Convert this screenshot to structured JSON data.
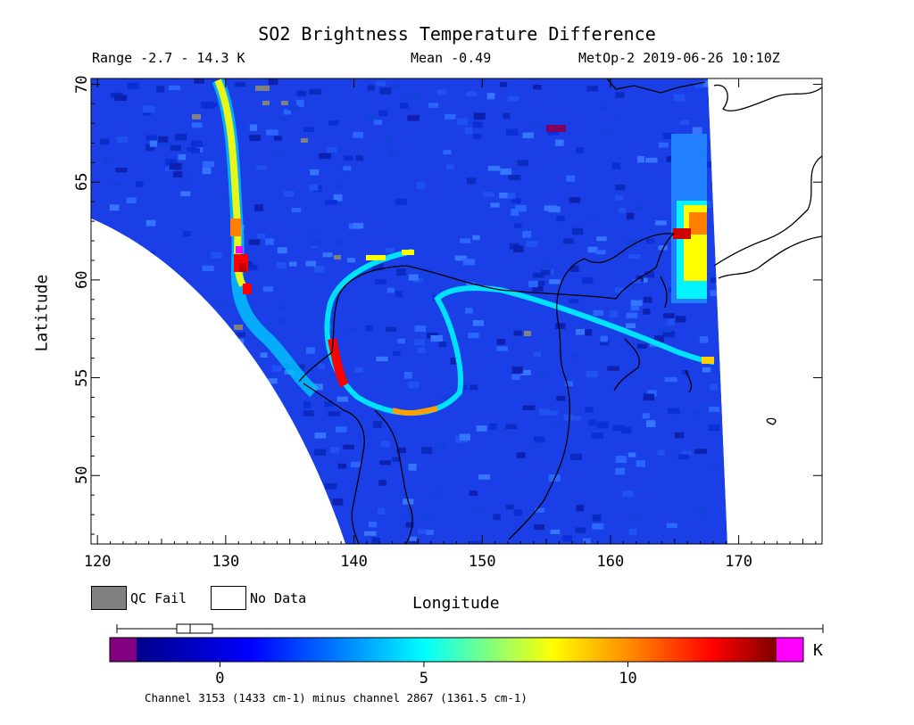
{
  "header": {
    "title": "SO2 Brightness Temperature Difference",
    "range": "Range -2.7 - 14.3 K",
    "mean": "Mean -0.49",
    "satellite_time": "MetOp-2 2019-06-26 10:10Z"
  },
  "map": {
    "x_axis_label": "Longitude",
    "y_axis_label": "Latitude",
    "x_ticks": [
      "120",
      "130",
      "140",
      "150",
      "160",
      "170"
    ],
    "y_ticks": [
      "70",
      "65",
      "60",
      "55",
      "50"
    ],
    "x_range_deg": [
      119.5,
      176.5
    ],
    "y_range_deg": [
      46.5,
      70.3
    ]
  },
  "legend": {
    "qc_fail_label": "QC Fail",
    "qc_fail_color": "#808080",
    "no_data_label": "No Data",
    "no_data_color": "#ffffff"
  },
  "colorbar": {
    "ticks": [
      "0",
      "5",
      "10"
    ],
    "unit": "K",
    "caption": "Channel 3153 (1433 cm-1) minus channel 2867 (1361.5 cm-1)",
    "range_K": [
      -2.7,
      14.3
    ],
    "underflow_color": "#800080",
    "overflow_color": "#ff00ff",
    "colors": [
      "#00008b",
      "#0000ff",
      "#0080ff",
      "#00ffff",
      "#80ff80",
      "#ffff00",
      "#ff8000",
      "#ff0000",
      "#800000"
    ]
  }
}
